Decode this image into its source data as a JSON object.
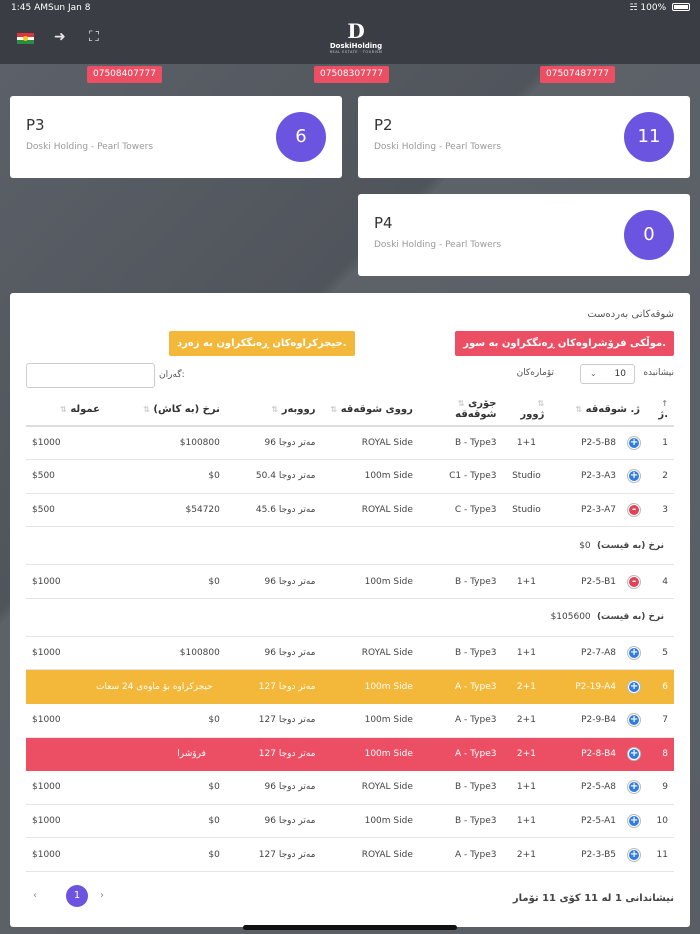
{
  "status_bar": {
    "time": "1:45 AM",
    "date": "Sun Jan 8",
    "battery": "100%"
  },
  "header": {
    "logo_mark": "D",
    "logo_name": "DoskiHolding",
    "logo_sub": "REAL ESTATE · TOURISM",
    "flag_colors": [
      "#e0343d",
      "#ffffff",
      "#2a8c3f"
    ]
  },
  "phones": [
    "07508407777",
    "07508307777",
    "07507487777"
  ],
  "cards": [
    {
      "title": "P3",
      "subtitle": "Doski Holding - Pearl Towers",
      "count": "6"
    },
    {
      "title": "P2",
      "subtitle": "Doski Holding - Pearl Towers",
      "count": "11"
    },
    {
      "title": "P4",
      "subtitle": "Doski Holding - Pearl Towers",
      "count": "0"
    }
  ],
  "panel": {
    "title": "شوقەکانی بەردەست",
    "sold_legend": "موڵکی فرۆشراوەکان ڕەنگکراون بە سور.",
    "reserved_legend": "حیجزکراوەکان ڕەنگکراون بە زەرد.",
    "length_label": "نیشانبدە",
    "length_value": "10",
    "length_suffix": "تۆمارەکان",
    "search_label": "گەران:",
    "search_value": ""
  },
  "table": {
    "headers": {
      "num": "ژ.",
      "unit": "ژ. شوقەقە",
      "floor": "ژوور",
      "type": "جۆری شوقەقە",
      "view": "رووی شوقەقە",
      "area": "رووبەر",
      "price": "نرخ (بە کاش)",
      "commission": "عمولە"
    },
    "rows": [
      {
        "num": "1",
        "ctl": "+",
        "unit": "P2-5-B8",
        "floor": "1+1",
        "type": "B - Type3",
        "view": "ROYAL Side",
        "area": "96 مەتر دوجا",
        "price": "$100800",
        "commission": "$1000"
      },
      {
        "num": "2",
        "ctl": "+",
        "unit": "P2-3-A3",
        "floor": "Studio",
        "type": "C1 - Type3",
        "view": "100m Side",
        "area": "50.4 مەتر دوجا",
        "price": "$0",
        "commission": "$500"
      },
      {
        "num": "3",
        "ctl": "-",
        "unit": "P2-3-A7",
        "floor": "Studio",
        "type": "C - Type3",
        "view": "ROYAL Side",
        "area": "45.6 مەتر دوجا",
        "price": "$54720",
        "commission": "$500"
      },
      {
        "num": "4",
        "ctl": "-",
        "unit": "P2-5-B1",
        "floor": "1+1",
        "type": "B - Type3",
        "view": "100m Side",
        "area": "96 مەتر دوجا",
        "price": "$0",
        "commission": "$1000"
      },
      {
        "num": "5",
        "ctl": "+",
        "unit": "P2-7-A8",
        "floor": "1+1",
        "type": "B - Type3",
        "view": "ROYAL Side",
        "area": "96 مەتر دوجا",
        "price": "$100800",
        "commission": "$1000"
      },
      {
        "num": "6",
        "ctl": "+",
        "unit": "P2-19-A4",
        "floor": "2+1",
        "type": "A - Type3",
        "view": "100m Side",
        "area": "127 مەتر دوجا",
        "status": "حیجزکراوە بۆ ماوەی 24 سعات"
      },
      {
        "num": "7",
        "ctl": "+",
        "unit": "P2-9-B4",
        "floor": "2+1",
        "type": "A - Type3",
        "view": "100m Side",
        "area": "127 مەتر دوجا",
        "price": "$0",
        "commission": "$1000"
      },
      {
        "num": "8",
        "ctl": "+",
        "unit": "P2-8-B4",
        "floor": "2+1",
        "type": "A - Type3",
        "view": "100m Side",
        "area": "127 مەتر دوجا",
        "status": "فرۆشرا"
      },
      {
        "num": "9",
        "ctl": "+",
        "unit": "P2-5-A8",
        "floor": "1+1",
        "type": "B - Type3",
        "view": "ROYAL Side",
        "area": "96 مەتر دوجا",
        "price": "$0",
        "commission": "$1000"
      },
      {
        "num": "10",
        "ctl": "+",
        "unit": "P2-5-A1",
        "floor": "1+1",
        "type": "B - Type3",
        "view": "100m Side",
        "area": "96 مەتر دوجا",
        "price": "$0",
        "commission": "$1000"
      },
      {
        "num": "11",
        "ctl": "+",
        "unit": "P2-3-B5",
        "floor": "2+1",
        "type": "A - Type3",
        "view": "ROYAL Side",
        "area": "127 مەتر دوجا",
        "price": "$0",
        "commission": "$1000"
      }
    ],
    "child_rows": [
      {
        "label": "نرخ (بە قیست)",
        "amount": "$0"
      },
      {
        "label": "نرخ (بە قیست)",
        "amount": "$105600"
      }
    ]
  },
  "footer": {
    "info": "نیشاندانی 1 لە 11 کۆی 11 تۆمار",
    "prev": "‹",
    "next": "›",
    "current_page": "1"
  },
  "colors": {
    "accent": "#6b55e0",
    "sold": "#ec4f63",
    "reserved": "#f3b83a",
    "expand": "#2f7de0"
  }
}
